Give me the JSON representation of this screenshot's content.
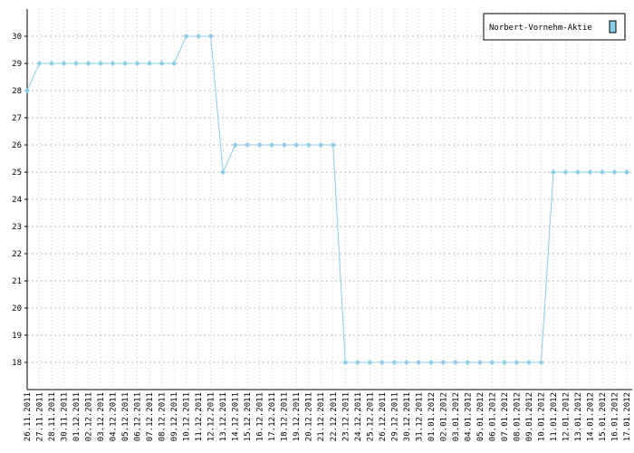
{
  "chart_data": {
    "type": "line",
    "categories": [
      "26.11.2011",
      "27.11.2011",
      "28.11.2011",
      "30.11.2011",
      "01.12.2011",
      "02.12.2011",
      "03.12.2011",
      "04.12.2011",
      "05.12.2011",
      "06.12.2011",
      "07.12.2011",
      "08.12.2011",
      "09.12.2011",
      "10.12.2011",
      "11.12.2011",
      "12.12.2011",
      "13.12.2011",
      "14.12.2011",
      "15.12.2011",
      "16.12.2011",
      "17.12.2011",
      "18.12.2011",
      "19.12.2011",
      "20.12.2011",
      "21.12.2011",
      "22.12.2011",
      "23.12.2011",
      "24.12.2011",
      "25.12.2011",
      "26.12.2011",
      "29.12.2011",
      "30.12.2011",
      "31.12.2011",
      "01.01.2012",
      "02.01.2012",
      "03.01.2012",
      "04.01.2012",
      "05.01.2012",
      "06.01.2012",
      "07.01.2012",
      "08.01.2012",
      "09.01.2012",
      "10.01.2012",
      "11.01.2012",
      "12.01.2012",
      "13.01.2012",
      "14.01.2012",
      "15.01.2012",
      "16.01.2012",
      "17.01.2012"
    ],
    "series": [
      {
        "name": "Norbert-Vornehm-Aktie",
        "color": "#87ceeb",
        "values": [
          28,
          29,
          29,
          29,
          29,
          29,
          29,
          29,
          29,
          29,
          29,
          29,
          29,
          30,
          30,
          30,
          25,
          26,
          26,
          26,
          26,
          26,
          26,
          26,
          26,
          26,
          18,
          18,
          18,
          18,
          18,
          18,
          18,
          18,
          18,
          18,
          18,
          18,
          18,
          18,
          18,
          18,
          18,
          25,
          25,
          25,
          25,
          25,
          25,
          25
        ]
      }
    ],
    "ylim": [
      17,
      31
    ],
    "yticks": [
      18,
      19,
      20,
      21,
      22,
      23,
      24,
      25,
      26,
      27,
      28,
      29,
      30
    ],
    "grid": true,
    "legend": "top-right"
  }
}
